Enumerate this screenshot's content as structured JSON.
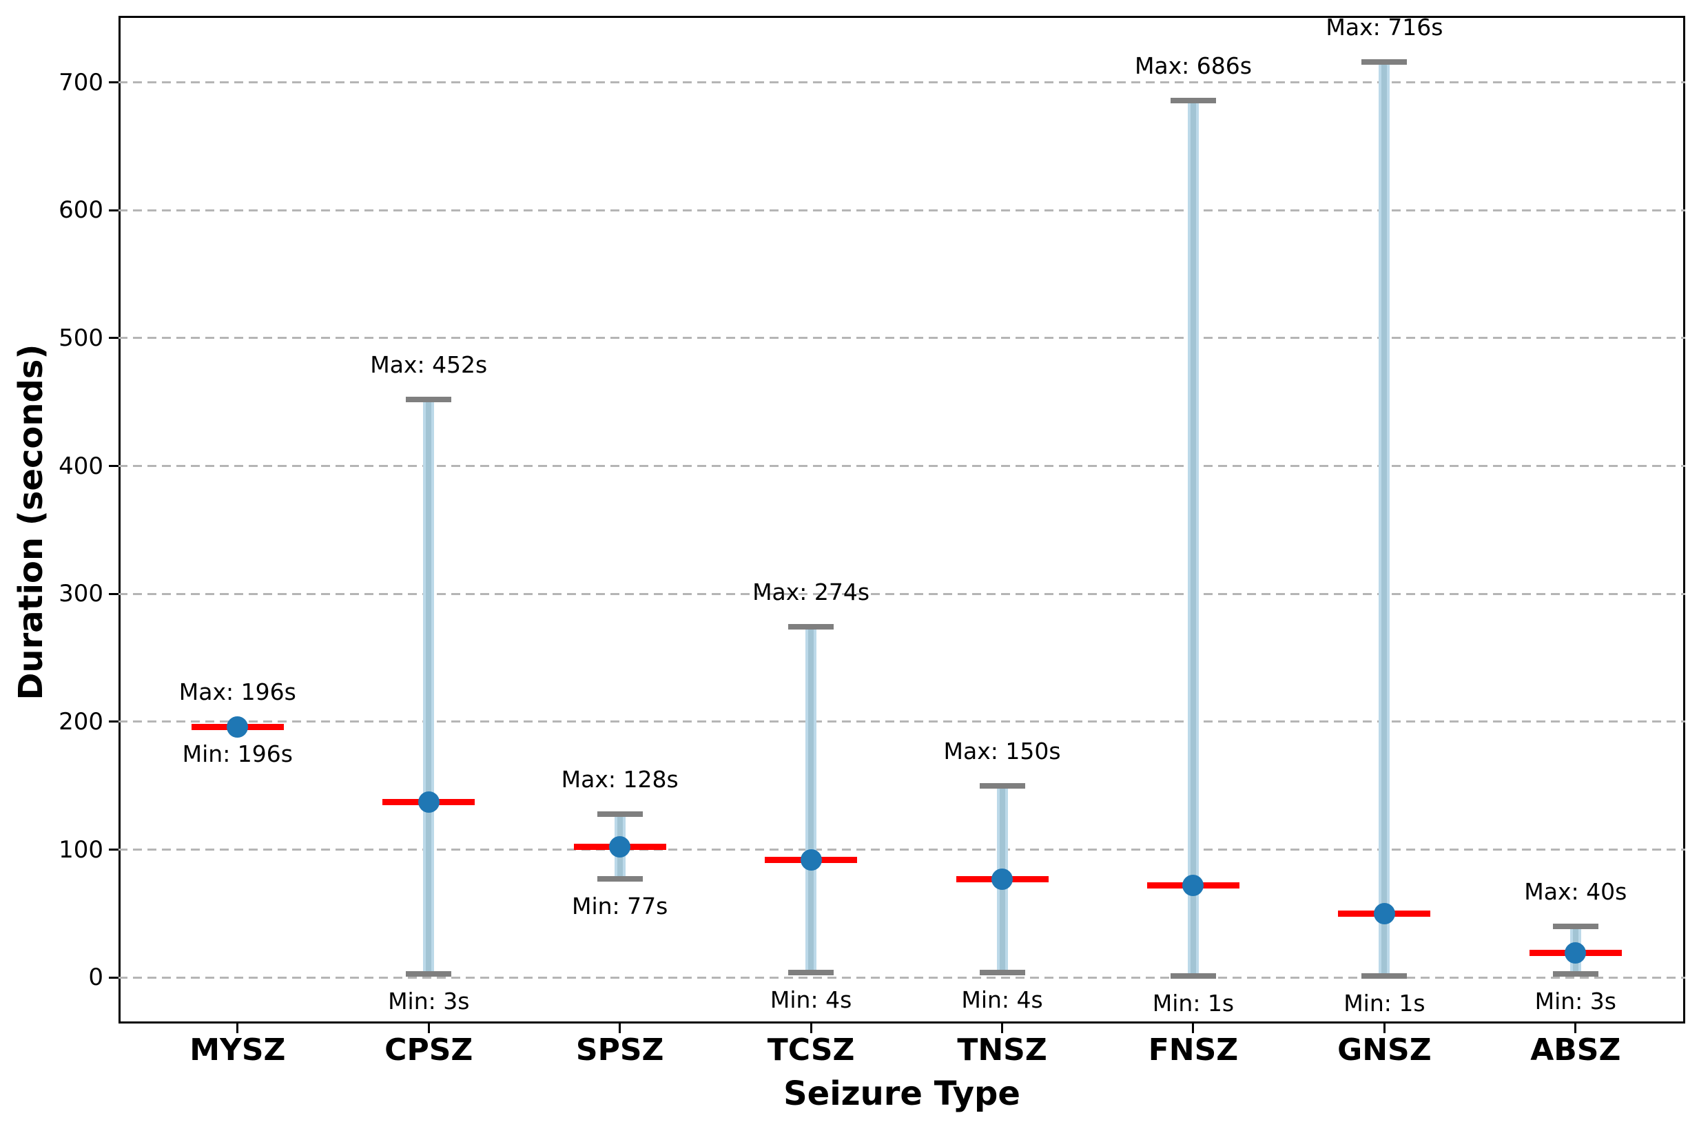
{
  "chart_data": {
    "type": "errorbar",
    "title": "",
    "xlabel": "Seizure Type",
    "ylabel": "Duration (seconds)",
    "categories": [
      "MYSZ",
      "CPSZ",
      "SPSZ",
      "TCSZ",
      "TNSZ",
      "FNSZ",
      "GNSZ",
      "ABSZ"
    ],
    "series": [
      {
        "name": "min_duration_s",
        "values": [
          196,
          3,
          77,
          4,
          4,
          1,
          1,
          3
        ]
      },
      {
        "name": "max_duration_s",
        "values": [
          196,
          452,
          128,
          274,
          150,
          686,
          716,
          40
        ]
      },
      {
        "name": "mean_duration_s",
        "values": [
          196,
          137,
          102,
          92,
          77,
          72,
          50,
          19
        ]
      },
      {
        "name": "median_duration_s",
        "values": [
          196,
          137,
          102,
          92,
          77,
          72,
          50,
          19
        ]
      }
    ],
    "annotations": {
      "max_labels": [
        "Max: 196s",
        "Max: 452s",
        "Max: 128s",
        "Max: 274s",
        "Max: 150s",
        "Max: 686s",
        "Max: 716s",
        "Max: 40s"
      ],
      "min_labels": [
        "Min: 196s",
        "Min: 3s",
        "Min: 77s",
        "Min: 4s",
        "Min: 4s",
        "Min: 1s",
        "Min: 1s",
        "Min: 3s"
      ]
    },
    "ytick_labels": [
      "0",
      "100",
      "200",
      "300",
      "400",
      "500",
      "600",
      "700"
    ],
    "ytick_values": [
      0,
      100,
      200,
      300,
      400,
      500,
      600,
      700
    ],
    "ylim": [
      -36,
      752
    ],
    "grid": {
      "axis": "y",
      "style": "dashed",
      "color": "#b5b5b5"
    },
    "legend": null,
    "colors": {
      "range_bar": "#bcd9e9",
      "range_bar_core": "#a2c4d4",
      "cap": "#7f7f7f",
      "mean_dot": "#1f77b4",
      "median_line": "#ff0000",
      "spine": "#000000",
      "text": "#000000",
      "background": "#ffffff"
    }
  }
}
